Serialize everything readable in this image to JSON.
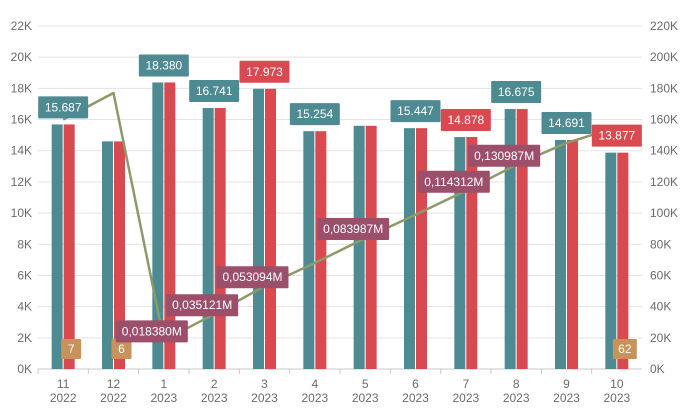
{
  "chart_data": {
    "type": "bar",
    "categories": [
      "11\n2022",
      "12\n2022",
      "1\n2023",
      "2\n2023",
      "3\n2023",
      "4\n2023",
      "5\n2023",
      "6\n2023",
      "7\n2023",
      "8\n2023",
      "9\n2023",
      "10\n2023"
    ],
    "series": [
      {
        "values": [
          15687,
          14600,
          18380,
          16741,
          17973,
          15254,
          15600,
          15447,
          14878,
          16675,
          14691,
          13877
        ],
        "color": "#4e8a92"
      },
      {
        "values": [
          15687,
          14600,
          18380,
          16741,
          17973,
          15254,
          15600,
          15447,
          14878,
          16675,
          14691,
          13877
        ],
        "color": "#d94a50"
      },
      {
        "values": [
          7,
          6,
          0,
          0,
          0,
          0,
          0,
          0,
          0,
          0,
          0,
          62
        ],
        "color": "#c9925a"
      }
    ],
    "line": {
      "color": "#8c9a6a",
      "axis": "right",
      "values": [
        160000,
        177000,
        18380,
        35121,
        53094,
        68000,
        83987,
        99000,
        114312,
        130987,
        145000,
        155000
      ]
    },
    "bar_labels": [
      {
        "i": 0,
        "text": "15.687",
        "color": "#4e8a92"
      },
      {
        "i": 2,
        "text": "18.380",
        "color": "#4e8a92"
      },
      {
        "i": 3,
        "text": "16.741",
        "color": "#4e8a92"
      },
      {
        "i": 4,
        "text": "17.973",
        "color": "#d94a50"
      },
      {
        "i": 5,
        "text": "15.254",
        "color": "#4e8a92"
      },
      {
        "i": 7,
        "text": "15.447",
        "color": "#4e8a92"
      },
      {
        "i": 8,
        "text": "14.878",
        "color": "#d94a50"
      },
      {
        "i": 9,
        "text": "16.675",
        "color": "#4e8a92"
      },
      {
        "i": 10,
        "text": "14.691",
        "color": "#4e8a92"
      },
      {
        "i": 11,
        "text": "13.877",
        "color": "#d94a50"
      }
    ],
    "small_labels": [
      {
        "i": 0,
        "text": "7"
      },
      {
        "i": 1,
        "text": "6"
      },
      {
        "i": 11,
        "text": "62"
      }
    ],
    "line_labels": [
      {
        "i": 2,
        "text": "0,018380M"
      },
      {
        "i": 3,
        "text": "0,035121M"
      },
      {
        "i": 4,
        "text": "0,053094M"
      },
      {
        "i": 6,
        "text": "0,083987M"
      },
      {
        "i": 8,
        "text": "0,114312M"
      },
      {
        "i": 9,
        "text": "0,130987M"
      }
    ],
    "line_label_color": "#9c4f6a",
    "y_left": {
      "min": 0,
      "max": 22000,
      "step": 2000,
      "ticks": [
        "0K",
        "2K",
        "4K",
        "6K",
        "8K",
        "10K",
        "12K",
        "14K",
        "16K",
        "18K",
        "20K",
        "22K"
      ]
    },
    "y_right": {
      "min": 0,
      "max": 220000,
      "step": 20000,
      "ticks": [
        "0K",
        "20K",
        "40K",
        "60K",
        "80K",
        "100K",
        "120K",
        "140K",
        "160K",
        "180K",
        "200K",
        "220K"
      ]
    },
    "grid": true
  }
}
